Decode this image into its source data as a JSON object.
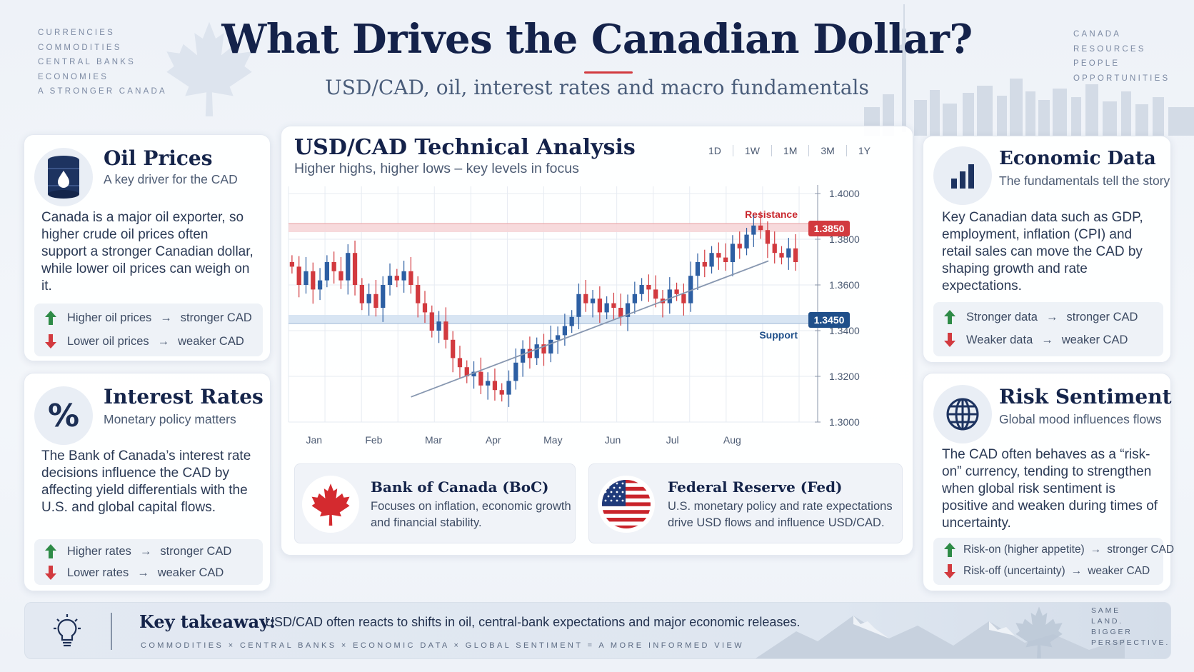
{
  "header": {
    "title": "What Drives the Canadian Dollar?",
    "subtitle": "USD/CAD, oil, interest rates and macro fundamentals"
  },
  "left_corner_list": [
    "Currencies",
    "Commodities",
    "Central Banks",
    "Economies",
    "A Stronger Canada"
  ],
  "right_corner_list": [
    "Canada",
    "Resources",
    "People",
    "Opportunities"
  ],
  "oil": {
    "title": "Oil Prices",
    "subtitle": "A key driver for the CAD",
    "body": "Canada is a major oil exporter, so higher crude oil prices often support a stronger Canadian dollar, while lower oil prices can weigh on it.",
    "up_label": "Higher oil prices",
    "up_result": "stronger CAD",
    "down_label": "Lower oil prices",
    "down_result": "weaker CAD"
  },
  "rates": {
    "title": "Interest Rates",
    "subtitle": "Monetary policy matters",
    "body": "The Bank of Canada’s interest rate decisions influence the CAD by affecting yield differentials with the U.S. and global capital flows.",
    "up_label": "Higher rates",
    "up_result": "stronger CAD",
    "down_label": "Lower rates",
    "down_result": "weaker CAD"
  },
  "economic": {
    "title": "Economic Data",
    "subtitle": "The fundamentals tell the story",
    "body": "Key Canadian data such as GDP, employment, inflation (CPI) and retail sales can move the CAD by shaping growth and rate expectations.",
    "up_label": "Stronger data",
    "up_result": "stronger CAD",
    "down_label": "Weaker data",
    "down_result": "weaker CAD"
  },
  "risk": {
    "title": "Risk Sentiment",
    "subtitle": "Global mood influences flows",
    "body": "The CAD often behaves as a “risk-on” currency, tending to strengthen when global risk sentiment is positive and weaken during times of uncertainty.",
    "up_label": "Risk-on (higher appetite)",
    "up_result": "stronger CAD",
    "down_label": "Risk-off (uncertainty)",
    "down_result": "weaker CAD"
  },
  "chart_panel": {
    "title": "USD/CAD Technical Analysis",
    "subtitle": "Higher highs, higher lows – key levels in focus",
    "timeframes": [
      "1D",
      "1W",
      "1M",
      "3M",
      "1Y"
    ],
    "resistance_label": "Resistance",
    "support_label": "Support"
  },
  "chart_data": {
    "type": "candlestick",
    "x_labels": [
      "Jan",
      "Feb",
      "Mar",
      "Apr",
      "May",
      "Jun",
      "Jul",
      "Aug"
    ],
    "y_ticks": [
      "1.4000",
      "1.3800",
      "1.3600",
      "1.3400",
      "1.3200",
      "1.3000"
    ],
    "ylim": [
      1.3,
      1.4
    ],
    "resistance": 1.385,
    "resistance_tag": "1.3850",
    "support": 1.345,
    "support_tag": "1.3450",
    "trendline": [
      [
        0.24,
        1.311
      ],
      [
        0.94,
        1.3705
      ]
    ],
    "close_path": [
      1.368,
      1.36,
      1.366,
      1.358,
      1.362,
      1.37,
      1.366,
      1.362,
      1.374,
      1.36,
      1.352,
      1.356,
      1.35,
      1.36,
      1.364,
      1.362,
      1.366,
      1.36,
      1.352,
      1.348,
      1.34,
      1.344,
      1.336,
      1.328,
      1.324,
      1.32,
      1.322,
      1.316,
      1.318,
      1.314,
      1.312,
      1.318,
      1.326,
      1.332,
      1.328,
      1.334,
      1.33,
      1.336,
      1.338,
      1.342,
      1.346,
      1.356,
      1.352,
      1.354,
      1.348,
      1.352,
      1.35,
      1.346,
      1.352,
      1.356,
      1.36,
      1.358,
      1.354,
      1.352,
      1.358,
      1.356,
      1.352,
      1.364,
      1.37,
      1.368,
      1.374,
      1.372,
      1.37,
      1.378,
      1.376,
      1.382,
      1.386,
      1.384,
      1.378,
      1.374,
      1.372,
      1.376,
      1.37
    ],
    "bullish_color": "#2d5fa3",
    "bearish_color": "#d23a3f"
  },
  "boc": {
    "title": "Bank of Canada (BoC)",
    "body": "Focuses on inflation, economic growth and financial stability."
  },
  "fed": {
    "title": "Federal Reserve (Fed)",
    "body": "U.S. monetary policy and rate expectations drive USD flows and influence USD/CAD."
  },
  "takeaway": {
    "label": "Key takeaway:",
    "text": "USD/CAD often reacts to shifts in oil, central-bank expectations and major economic releases.",
    "tags": "Commodities × Central Banks × Economic Data × Global Sentiment = A More Informed View",
    "side": [
      "Same",
      "Land.",
      "Bigger",
      "Perspective."
    ]
  },
  "colors": {
    "navy": "#14224a",
    "red": "#d23a3f",
    "green": "#2e8b47",
    "blue_tag": "#1f4f8a"
  }
}
